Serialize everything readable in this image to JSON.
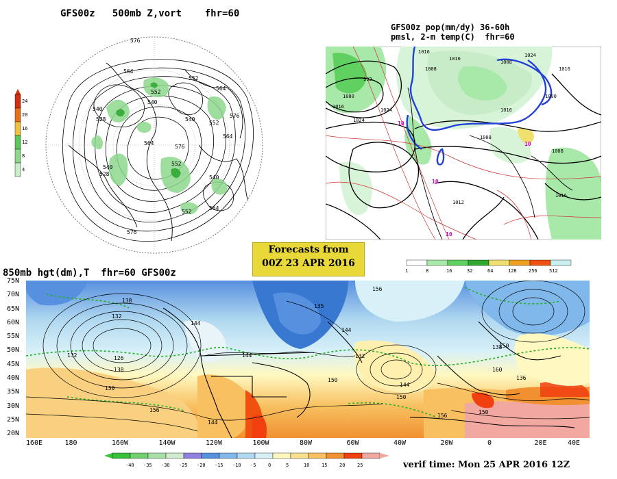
{
  "panel_500mb": {
    "title": "GFS00z   500mb Z,vort    fhr=60",
    "scale_labels": [
      "24",
      "20",
      "16",
      "12",
      "8",
      "4"
    ],
    "scale_colors": [
      "#d03010",
      "#e87018",
      "#f0c040",
      "#58c858",
      "#8cd88c",
      "#c8ecc8"
    ],
    "contour_labels": [
      "576",
      "564",
      "552",
      "540",
      "528",
      "540",
      "552",
      "564",
      "576",
      "540",
      "552",
      "564",
      "576",
      "564",
      "552",
      "540",
      "528",
      "540",
      "564",
      "552",
      "576"
    ]
  },
  "panel_precip": {
    "title_line1": "GFS00z pop(mm/dy) 36-60h",
    "title_line2": "pmsl, 2-m temp(C)  fhr=60",
    "scale_labels": [
      "1",
      "8",
      "16",
      "32",
      "64",
      "128",
      "256",
      "512"
    ],
    "scale_colors": [
      "#ffffff",
      "#a8e8a8",
      "#60d060",
      "#30a830",
      "#f0e070",
      "#f0a020",
      "#f05010",
      "#c8f0f0"
    ],
    "pressure_labels": [
      "1024",
      "1000",
      "992",
      "1016",
      "1024",
      "1016",
      "1008",
      "1016",
      "1008",
      "1024",
      "1016",
      "1016",
      "1000",
      "1008",
      "1008",
      "1016",
      "1012"
    ],
    "temp_labels": [
      "10",
      "10",
      "10",
      "10"
    ]
  },
  "banner": {
    "line1": "Forecasts from",
    "line2": "00Z 23 APR 2016"
  },
  "panel_850mb": {
    "title": "850mb hgt(dm),T  fhr=60 GFS00z",
    "lat_labels": [
      "75N",
      "70N",
      "65N",
      "60N",
      "55N",
      "50N",
      "45N",
      "40N",
      "35N",
      "30N",
      "25N",
      "20N"
    ],
    "lon_labels": [
      "160E",
      "180",
      "160W",
      "140W",
      "120W",
      "100W",
      "80W",
      "60W",
      "40W",
      "20W",
      "0",
      "20E",
      "40E"
    ],
    "height_labels": [
      "138",
      "132",
      "126",
      "138",
      "132",
      "144",
      "150",
      "156",
      "144",
      "135",
      "156",
      "144",
      "132",
      "150",
      "144",
      "150",
      "144",
      "150",
      "138",
      "160",
      "136",
      "150",
      "156"
    ],
    "temp_scale_labels": [
      "-40",
      "-35",
      "-30",
      "-25",
      "-20",
      "-15",
      "-10",
      "-5",
      "0",
      "5",
      "10",
      "15",
      "20",
      "25"
    ],
    "temp_scale_colors": [
      "#38c038",
      "#70d070",
      "#a8e0a8",
      "#d0ecd0",
      "#9080e0",
      "#5890e0",
      "#80b8ec",
      "#b0d8f0",
      "#d8f0f8",
      "#fff8c0",
      "#f8e090",
      "#f8c060",
      "#f09030",
      "#f04010",
      "#f0a8a0"
    ]
  },
  "footer": {
    "verif": "verif time: Mon 25 APR 2016 12Z"
  }
}
